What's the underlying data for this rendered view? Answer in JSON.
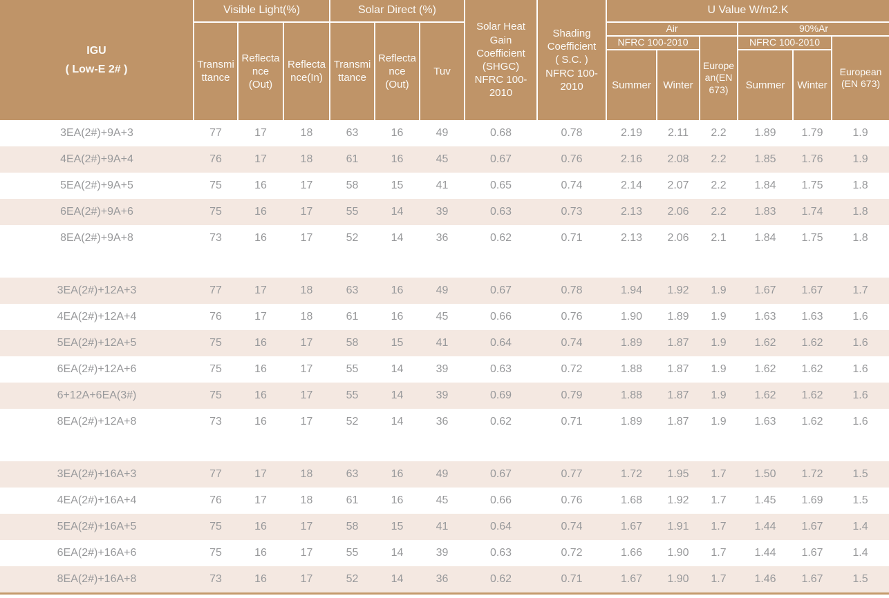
{
  "colors": {
    "header_bg": "#bf9468",
    "header_text": "#fbfaf7",
    "stripe_bg": "#f4e8e1",
    "row_bg": "#ffffff",
    "data_text": "#98999b",
    "bottom_rule": "#c49a6c"
  },
  "header": {
    "igu_title": "IGU\n( Low-E 2# )",
    "visible_light_group": "Visible Light(%)",
    "solar_direct_group": "Solar Direct (%)",
    "shgc": "Solar Heat\nGain\nCoefficient\n(SHGC)\nNFRC 100-\n2010",
    "shading_coefficient": "Shading\nCoefficient\n( S.C. )\nNFRC 100-\n2010",
    "u_value_group": "U Value W/m2.K",
    "vl_transmittance": "Transmi\nttance",
    "vl_reflectance_out": "Reflecta\nnce\n(Out)",
    "vl_reflectance_in": "Reflecta\nnce(In)",
    "sd_transmittance": "Transmi\nttance",
    "sd_reflectance_out": "Reflecta\nnce\n(Out)",
    "tuv": "Tuv",
    "air_group": "Air",
    "argon_group": "90%Ar",
    "air_nfrc": "NFRC 100-2010",
    "argon_nfrc": "NFRC 100-2010",
    "air_summer": "Summer",
    "air_winter": "Winter",
    "air_european": "Europe\nan(EN\n673)",
    "argon_summer": "Summer",
    "argon_winter": "Winter",
    "argon_european": "European\n(EN 673)"
  },
  "chart_data": {
    "type": "table",
    "title": "IGU ( Low-E 2# )",
    "columns": [
      "IGU ( Low-E 2# )",
      "Visible Light(%) Transmittance",
      "Visible Light(%) Reflectance (Out)",
      "Visible Light(%) Reflectance(In)",
      "Solar Direct (%) Transmittance",
      "Solar Direct (%) Reflectance (Out)",
      "Solar Direct (%) Tuv",
      "Solar Heat Gain Coefficient (SHGC) NFRC 100-2010",
      "Shading Coefficient ( S.C. ) NFRC 100-2010",
      "U Value W/m2.K Air NFRC 100-2010 Summer",
      "U Value W/m2.K Air NFRC 100-2010 Winter",
      "U Value W/m2.K Air European(EN 673)",
      "U Value W/m2.K 90%Ar NFRC 100-2010 Summer",
      "U Value W/m2.K 90%Ar NFRC 100-2010 Winter",
      "U Value W/m2.K 90%Ar European (EN 673)"
    ],
    "groups": [
      {
        "rows": [
          {
            "label": "3EA(2#)+9A+3",
            "values": [
              "77",
              "17",
              "18",
              "63",
              "16",
              "49",
              "0.68",
              "0.78",
              "2.19",
              "2.11",
              "2.2",
              "1.89",
              "1.79",
              "1.9"
            ]
          },
          {
            "label": "4EA(2#)+9A+4",
            "values": [
              "76",
              "17",
              "18",
              "61",
              "16",
              "45",
              "0.67",
              "0.76",
              "2.16",
              "2.08",
              "2.2",
              "1.85",
              "1.76",
              "1.9"
            ]
          },
          {
            "label": "5EA(2#)+9A+5",
            "values": [
              "75",
              "16",
              "17",
              "58",
              "15",
              "41",
              "0.65",
              "0.74",
              "2.14",
              "2.07",
              "2.2",
              "1.84",
              "1.75",
              "1.8"
            ]
          },
          {
            "label": "6EA(2#)+9A+6",
            "values": [
              "75",
              "16",
              "17",
              "55",
              "14",
              "39",
              "0.63",
              "0.73",
              "2.13",
              "2.06",
              "2.2",
              "1.83",
              "1.74",
              "1.8"
            ]
          },
          {
            "label": "8EA(2#)+9A+8",
            "values": [
              "73",
              "16",
              "17",
              "52",
              "14",
              "36",
              "0.62",
              "0.71",
              "2.13",
              "2.06",
              "2.1",
              "1.84",
              "1.75",
              "1.8"
            ]
          }
        ]
      },
      {
        "rows": [
          {
            "label": "3EA(2#)+12A+3",
            "values": [
              "77",
              "17",
              "18",
              "63",
              "16",
              "49",
              "0.67",
              "0.78",
              "1.94",
              "1.92",
              "1.9",
              "1.67",
              "1.67",
              "1.7"
            ]
          },
          {
            "label": "4EA(2#)+12A+4",
            "values": [
              "76",
              "17",
              "18",
              "61",
              "16",
              "45",
              "0.66",
              "0.76",
              "1.90",
              "1.89",
              "1.9",
              "1.63",
              "1.63",
              "1.6"
            ]
          },
          {
            "label": "5EA(2#)+12A+5",
            "values": [
              "75",
              "16",
              "17",
              "58",
              "15",
              "41",
              "0.64",
              "0.74",
              "1.89",
              "1.87",
              "1.9",
              "1.62",
              "1.62",
              "1.6"
            ]
          },
          {
            "label": "6EA(2#)+12A+6",
            "values": [
              "75",
              "16",
              "17",
              "55",
              "14",
              "39",
              "0.63",
              "0.72",
              "1.88",
              "1.87",
              "1.9",
              "1.62",
              "1.62",
              "1.6"
            ]
          },
          {
            "label": "6+12A+6EA(3#)",
            "values": [
              "75",
              "16",
              "17",
              "55",
              "14",
              "39",
              "0.69",
              "0.79",
              "1.88",
              "1.87",
              "1.9",
              "1.62",
              "1.62",
              "1.6"
            ]
          },
          {
            "label": "8EA(2#)+12A+8",
            "values": [
              "73",
              "16",
              "17",
              "52",
              "14",
              "36",
              "0.62",
              "0.71",
              "1.89",
              "1.87",
              "1.9",
              "1.63",
              "1.62",
              "1.6"
            ]
          }
        ]
      },
      {
        "rows": [
          {
            "label": "3EA(2#)+16A+3",
            "values": [
              "77",
              "17",
              "18",
              "63",
              "16",
              "49",
              "0.67",
              "0.77",
              "1.72",
              "1.95",
              "1.7",
              "1.50",
              "1.72",
              "1.5"
            ]
          },
          {
            "label": "4EA(2#)+16A+4",
            "values": [
              "76",
              "17",
              "18",
              "61",
              "16",
              "45",
              "0.66",
              "0.76",
              "1.68",
              "1.92",
              "1.7",
              "1.45",
              "1.69",
              "1.5"
            ]
          },
          {
            "label": "5EA(2#)+16A+5",
            "values": [
              "75",
              "16",
              "17",
              "58",
              "15",
              "41",
              "0.64",
              "0.74",
              "1.67",
              "1.91",
              "1.7",
              "1.44",
              "1.67",
              "1.4"
            ]
          },
          {
            "label": "6EA(2#)+16A+6",
            "values": [
              "75",
              "16",
              "17",
              "55",
              "14",
              "39",
              "0.63",
              "0.72",
              "1.66",
              "1.90",
              "1.7",
              "1.44",
              "1.67",
              "1.4"
            ]
          },
          {
            "label": "8EA(2#)+16A+8",
            "values": [
              "73",
              "16",
              "17",
              "52",
              "14",
              "36",
              "0.62",
              "0.71",
              "1.67",
              "1.90",
              "1.7",
              "1.46",
              "1.67",
              "1.5"
            ]
          }
        ]
      }
    ]
  }
}
